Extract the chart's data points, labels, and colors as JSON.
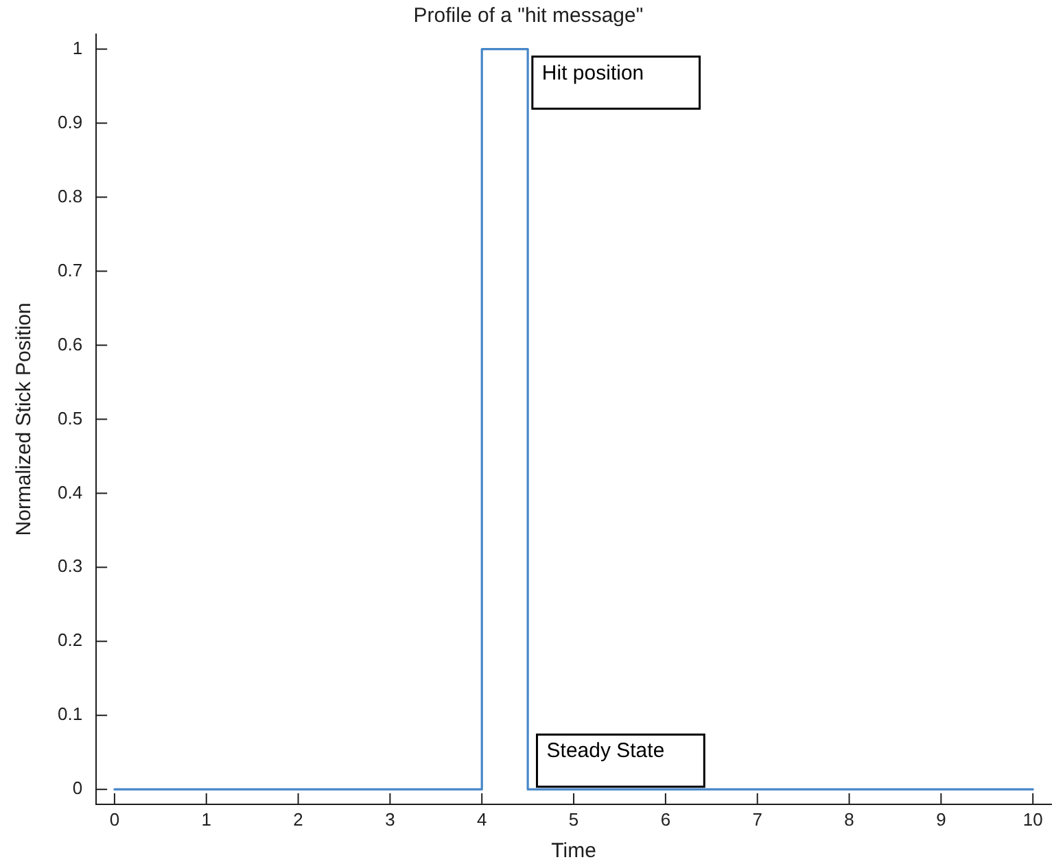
{
  "chart_data": {
    "type": "line",
    "title": "Profile of a \"hit message\"",
    "xlabel": "Time",
    "ylabel": "Normalized Stick Position",
    "x": [
      0,
      4,
      4,
      4.5,
      4.5,
      10
    ],
    "values": [
      0,
      0,
      1,
      1,
      0,
      0
    ],
    "color": "#4686c8",
    "xlim": [
      -0.2,
      10.2
    ],
    "xticks": [
      0,
      1,
      2,
      3,
      4,
      5,
      6,
      7,
      8,
      9,
      10
    ],
    "ylim": [
      -0.02,
      1.02
    ],
    "yticks": [
      0,
      0.1,
      0.2,
      0.3,
      0.4,
      0.5,
      0.6,
      0.7,
      0.8,
      0.9,
      1
    ],
    "annotations": [
      {
        "text": "Hit position",
        "x": 4.55,
        "y": 0.99
      },
      {
        "text": "Steady State",
        "x": 4.6,
        "y": 0
      }
    ]
  }
}
